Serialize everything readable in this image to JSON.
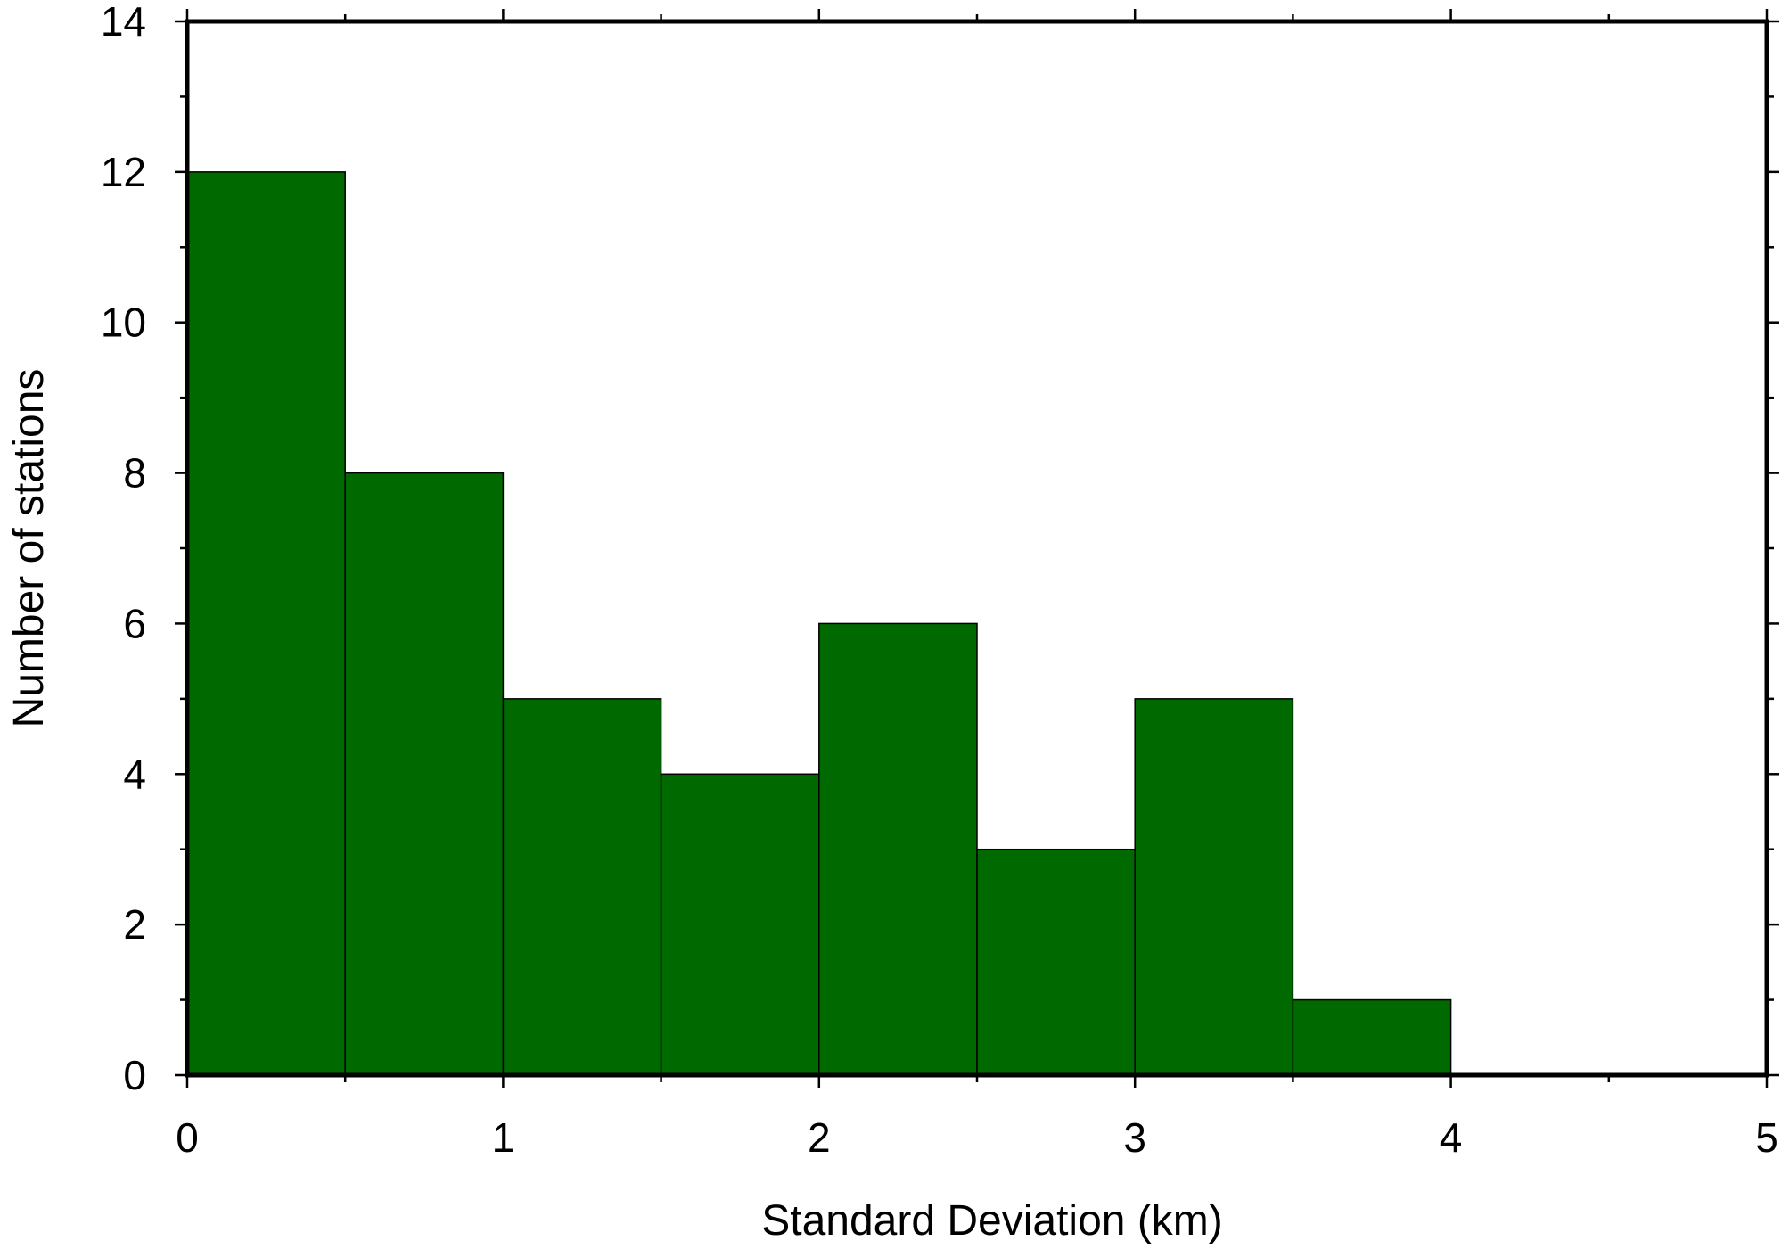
{
  "chart_data": {
    "type": "bar",
    "bins": [
      {
        "x0": 0,
        "x1": 0.5,
        "count": 12
      },
      {
        "x0": 0.5,
        "x1": 1,
        "count": 8
      },
      {
        "x0": 1,
        "x1": 1.5,
        "count": 5
      },
      {
        "x0": 1.5,
        "x1": 2,
        "count": 4
      },
      {
        "x0": 2,
        "x1": 2.5,
        "count": 6
      },
      {
        "x0": 2.5,
        "x1": 3,
        "count": 3
      },
      {
        "x0": 3,
        "x1": 3.5,
        "count": 5
      },
      {
        "x0": 3.5,
        "x1": 4,
        "count": 1
      }
    ],
    "xlabel": "Standard Deviation (km)",
    "ylabel": "Number of stations",
    "xlim": [
      0,
      5
    ],
    "ylim": [
      0,
      14
    ],
    "x_ticks": [
      0,
      1,
      2,
      3,
      4,
      5
    ],
    "x_tick_labels": [
      "0",
      "1",
      "2",
      "3",
      "4",
      "5"
    ],
    "x_minor_ticks": [
      0.5,
      1.5,
      2.5,
      3.5,
      4.5
    ],
    "y_ticks": [
      0,
      2,
      4,
      6,
      8,
      10,
      12,
      14
    ],
    "y_tick_labels": [
      "0",
      "2",
      "4",
      "6",
      "8",
      "10",
      "12",
      "14"
    ],
    "y_minor_ticks": [
      1,
      3,
      5,
      7,
      9,
      11,
      13
    ],
    "grid": false,
    "legend": "none",
    "bar_color": "#006a00",
    "bar_edge_color": "#000000"
  }
}
